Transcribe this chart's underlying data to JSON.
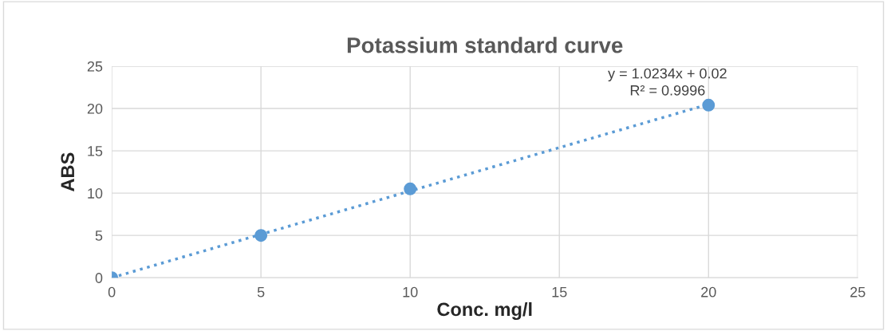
{
  "chart_data": {
    "type": "scatter",
    "title": "Potassium standard curve",
    "xlabel": "Conc. mg/l",
    "ylabel": "ABS",
    "series": [
      {
        "color": "#5b9bd5",
        "marker": "circle",
        "x": [
          0,
          5,
          10,
          20
        ],
        "values": [
          0,
          5,
          10.5,
          20.4
        ]
      },
      {
        "type": "line",
        "color": "#5b9bd5",
        "marker": "none",
        "line_style": "dotted",
        "x": [
          0,
          20
        ],
        "values": [
          0,
          20.5
        ]
      }
    ],
    "annotations": [
      "y = 1.0234x + 0.02",
      "R² = 0.9996"
    ],
    "xlim": [
      0,
      25
    ],
    "xticks": [
      0,
      5,
      10,
      15,
      20,
      25
    ],
    "ylim": [
      0,
      25
    ],
    "yticks": [
      0,
      5,
      10,
      15,
      20,
      25
    ],
    "grid": true,
    "legend": false
  }
}
